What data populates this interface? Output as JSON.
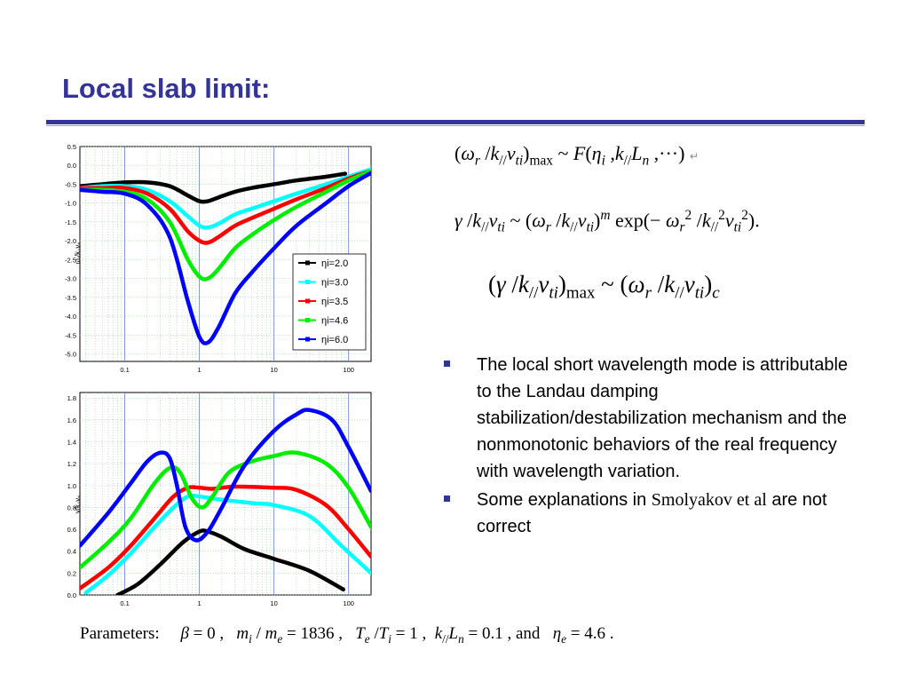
{
  "slide": {
    "title": "Local slab limit:",
    "colors": {
      "title": "#333399",
      "bullet": "#333399"
    }
  },
  "equations": {
    "eq1": "(ω_r / k_// v_ti)_max ~ F(η_i, k_// L_n, ···)",
    "eq2": "γ / k_// v_ti ~ (ω_r / k_// v_ti)^m exp(− ω_r^2 / k_//^2 v_ti^2)",
    "eq3": "(γ / k_// v_ti)_max ~ (ω_r / k_// v_ti)_c"
  },
  "bullets": [
    {
      "text": "The local short wavelength mode is attributable to the Landau damping stabilization/destabilization mechanism and the nonmonotonic behaviors of the real frequency with wavelength variation."
    },
    {
      "text_before": "Some explanations in ",
      "text_serif": "Smolyakov et al",
      "text_after": " are not correct"
    }
  ],
  "parameters": {
    "label": "Parameters:",
    "text": "β = 0 ,  m_i / m_e = 1836 ,  T_e / T_i = 1 ,  k_// L_n = 0.1 , and  η_e = 4.6 ."
  },
  "chart_data": [
    {
      "type": "line",
      "xscale": "log",
      "xlim": [
        0.025,
        200
      ],
      "ylim": [
        -5.2,
        0.5
      ],
      "xticks": [
        "0.1",
        "1",
        "10",
        "100"
      ],
      "yticks": [
        "0.5",
        "0.0",
        "-0.5",
        "-1.0",
        "-1.5",
        "-2.0",
        "-2.5",
        "-3.0",
        "-3.5",
        "-4.0",
        "-4.5",
        "-5.0"
      ],
      "ytick_values": [
        0.5,
        0,
        -0.5,
        -1.0,
        -1.5,
        -2.0,
        -2.5,
        -3.0,
        -3.5,
        -4.0,
        -4.5,
        -5.0
      ],
      "ylabel": "ω_r/k_// v_ti",
      "grid": true,
      "legend": "bottom-right",
      "series": [
        {
          "name": "η_i=2.0",
          "color": "#000000",
          "x": [
            0.025,
            0.05,
            0.1,
            0.2,
            0.4,
            0.7,
            1.0,
            1.3,
            1.8,
            3,
            5,
            10,
            20,
            50,
            90
          ],
          "y": [
            -0.55,
            -0.5,
            -0.45,
            -0.45,
            -0.55,
            -0.8,
            -0.95,
            -0.95,
            -0.85,
            -0.7,
            -0.6,
            -0.5,
            -0.4,
            -0.3,
            -0.22
          ]
        },
        {
          "name": "η_i=3.0",
          "color": "#00ffff",
          "x": [
            0.025,
            0.05,
            0.1,
            0.2,
            0.4,
            0.7,
            1.0,
            1.3,
            1.8,
            3,
            5,
            10,
            20,
            50,
            100,
            200
          ],
          "y": [
            -0.6,
            -0.55,
            -0.55,
            -0.65,
            -0.95,
            -1.35,
            -1.6,
            -1.65,
            -1.55,
            -1.3,
            -1.15,
            -0.95,
            -0.75,
            -0.5,
            -0.3,
            -0.1
          ]
        },
        {
          "name": "η_i=3.5",
          "color": "#ff0000",
          "x": [
            0.025,
            0.05,
            0.1,
            0.2,
            0.4,
            0.7,
            1.0,
            1.3,
            1.8,
            3,
            5,
            10,
            20,
            50,
            100,
            200
          ],
          "y": [
            -0.6,
            -0.6,
            -0.6,
            -0.75,
            -1.15,
            -1.75,
            -2.0,
            -2.05,
            -1.9,
            -1.6,
            -1.4,
            -1.15,
            -0.9,
            -0.6,
            -0.35,
            -0.15
          ]
        },
        {
          "name": "η_i=4.6",
          "color": "#00ee00",
          "x": [
            0.025,
            0.05,
            0.1,
            0.2,
            0.4,
            0.7,
            1.0,
            1.3,
            1.8,
            3,
            5,
            10,
            20,
            50,
            100,
            200
          ],
          "y": [
            -0.65,
            -0.65,
            -0.7,
            -0.9,
            -1.5,
            -2.5,
            -2.95,
            -3.0,
            -2.75,
            -2.2,
            -1.85,
            -1.45,
            -1.1,
            -0.7,
            -0.4,
            -0.15
          ]
        },
        {
          "name": "η_i=6.0",
          "color": "#0000ff",
          "x": [
            0.025,
            0.05,
            0.1,
            0.2,
            0.4,
            0.7,
            1.0,
            1.3,
            1.8,
            3,
            5,
            10,
            20,
            50,
            100,
            200
          ],
          "y": [
            -0.65,
            -0.7,
            -0.75,
            -1.05,
            -1.9,
            -3.6,
            -4.55,
            -4.7,
            -4.3,
            -3.4,
            -2.85,
            -2.2,
            -1.6,
            -1.0,
            -0.55,
            -0.2
          ]
        }
      ]
    },
    {
      "type": "line",
      "xscale": "log",
      "xlim": [
        0.025,
        200
      ],
      "ylim": [
        0,
        1.85
      ],
      "xticks": [
        "0.1",
        "1",
        "10",
        "100"
      ],
      "yticks": [
        "1.8",
        "1.6",
        "1.4",
        "1.2",
        "1.0",
        "0.8",
        "0.6",
        "0.4",
        "0.2",
        "0.0"
      ],
      "ytick_values": [
        1.8,
        1.6,
        1.4,
        1.2,
        1.0,
        0.8,
        0.6,
        0.4,
        0.2,
        0.0
      ],
      "ylabel": "γ/k_// v_ti",
      "grid": true,
      "series": [
        {
          "name": "η_i=2.0",
          "color": "#000000",
          "x": [
            0.08,
            0.15,
            0.3,
            0.6,
            1.0,
            1.3,
            2,
            4,
            10,
            30,
            85
          ],
          "y": [
            0.0,
            0.1,
            0.28,
            0.48,
            0.58,
            0.58,
            0.53,
            0.42,
            0.33,
            0.22,
            0.05
          ]
        },
        {
          "name": "η_i=3.0",
          "color": "#00ffff",
          "x": [
            0.03,
            0.06,
            0.12,
            0.25,
            0.45,
            0.7,
            1.0,
            2,
            5,
            10,
            30,
            80,
            200
          ],
          "y": [
            0.02,
            0.18,
            0.38,
            0.62,
            0.8,
            0.9,
            0.9,
            0.87,
            0.84,
            0.82,
            0.72,
            0.45,
            0.2
          ]
        },
        {
          "name": "η_i=3.5",
          "color": "#ff0000",
          "x": [
            0.025,
            0.06,
            0.12,
            0.25,
            0.45,
            0.7,
            1.0,
            1.5,
            3,
            10,
            20,
            50,
            100,
            200
          ],
          "y": [
            0.06,
            0.25,
            0.45,
            0.7,
            0.9,
            0.98,
            0.98,
            0.97,
            0.99,
            0.98,
            0.96,
            0.82,
            0.6,
            0.35
          ]
        },
        {
          "name": "η_i=4.6",
          "color": "#00ee00",
          "x": [
            0.025,
            0.06,
            0.12,
            0.25,
            0.4,
            0.55,
            0.8,
            1.1,
            1.5,
            2.5,
            5,
            10,
            20,
            50,
            100,
            200
          ],
          "y": [
            0.25,
            0.48,
            0.7,
            1.02,
            1.16,
            1.12,
            0.88,
            0.8,
            0.9,
            1.12,
            1.22,
            1.27,
            1.3,
            1.2,
            0.98,
            0.62
          ]
        },
        {
          "name": "η_i=6.0",
          "color": "#0000ff",
          "x": [
            0.025,
            0.06,
            0.12,
            0.2,
            0.3,
            0.4,
            0.5,
            0.65,
            0.9,
            1.3,
            2,
            4,
            10,
            20,
            30,
            60,
            100,
            200
          ],
          "y": [
            0.45,
            0.75,
            1.02,
            1.22,
            1.3,
            1.25,
            1.0,
            0.62,
            0.5,
            0.58,
            0.8,
            1.18,
            1.5,
            1.65,
            1.69,
            1.6,
            1.35,
            0.95
          ]
        }
      ]
    }
  ]
}
